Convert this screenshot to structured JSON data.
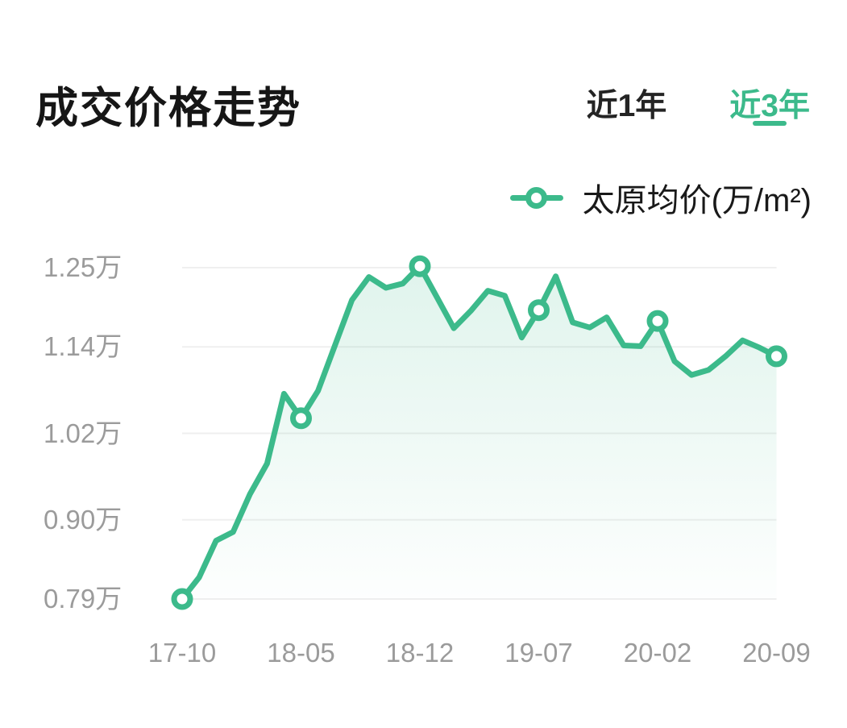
{
  "header": {
    "title": "成交价格走势"
  },
  "tabs": [
    {
      "label": "近1年",
      "active": false
    },
    {
      "label": "近3年",
      "active": true
    }
  ],
  "legend": {
    "label": "太原均价(万/m²)"
  },
  "colors": {
    "accent": "#3cba8b",
    "title_text": "#161616",
    "tab_inactive_text": "#242424",
    "axis_label": "#9b9b9b",
    "gridline": "#efefef",
    "marker_fill": "#ffffff"
  },
  "chart_data": {
    "type": "area",
    "title": "成交价格走势",
    "series_name": "太原均价(万/m²)",
    "unit": "万/m²",
    "x": [
      "17-10",
      "17-11",
      "17-12",
      "18-01",
      "18-02",
      "18-03",
      "18-04",
      "18-05",
      "18-06",
      "18-07",
      "18-08",
      "18-09",
      "18-10",
      "18-11",
      "18-12",
      "19-01",
      "19-02",
      "19-03",
      "19-04",
      "19-05",
      "19-06",
      "19-07",
      "19-08",
      "19-09",
      "19-10",
      "19-11",
      "19-12",
      "20-01",
      "20-02",
      "20-03",
      "20-04",
      "20-05",
      "20-06",
      "20-07",
      "20-08",
      "20-09"
    ],
    "values": [
      0.79,
      0.82,
      0.871,
      0.883,
      0.936,
      0.978,
      1.075,
      1.041,
      1.079,
      1.142,
      1.205,
      1.237,
      1.222,
      1.228,
      1.252,
      1.209,
      1.166,
      1.19,
      1.218,
      1.211,
      1.153,
      1.191,
      1.238,
      1.174,
      1.167,
      1.181,
      1.142,
      1.141,
      1.176,
      1.12,
      1.101,
      1.108,
      1.127,
      1.149,
      1.139,
      1.127
    ],
    "marker_indices": [
      0,
      7,
      14,
      21,
      28,
      35
    ],
    "x_tick_labels": [
      "17-10",
      "18-05",
      "18-12",
      "19-07",
      "20-02",
      "20-09"
    ],
    "y_tick_labels": [
      "0.79万",
      "0.90万",
      "1.02万",
      "1.14万",
      "1.25万"
    ],
    "y_ticks": [
      0.79,
      0.9,
      1.02,
      1.14,
      1.25
    ],
    "ylim": [
      0.79,
      1.25
    ],
    "grid": "horizontal",
    "legend_position": "top-right"
  }
}
